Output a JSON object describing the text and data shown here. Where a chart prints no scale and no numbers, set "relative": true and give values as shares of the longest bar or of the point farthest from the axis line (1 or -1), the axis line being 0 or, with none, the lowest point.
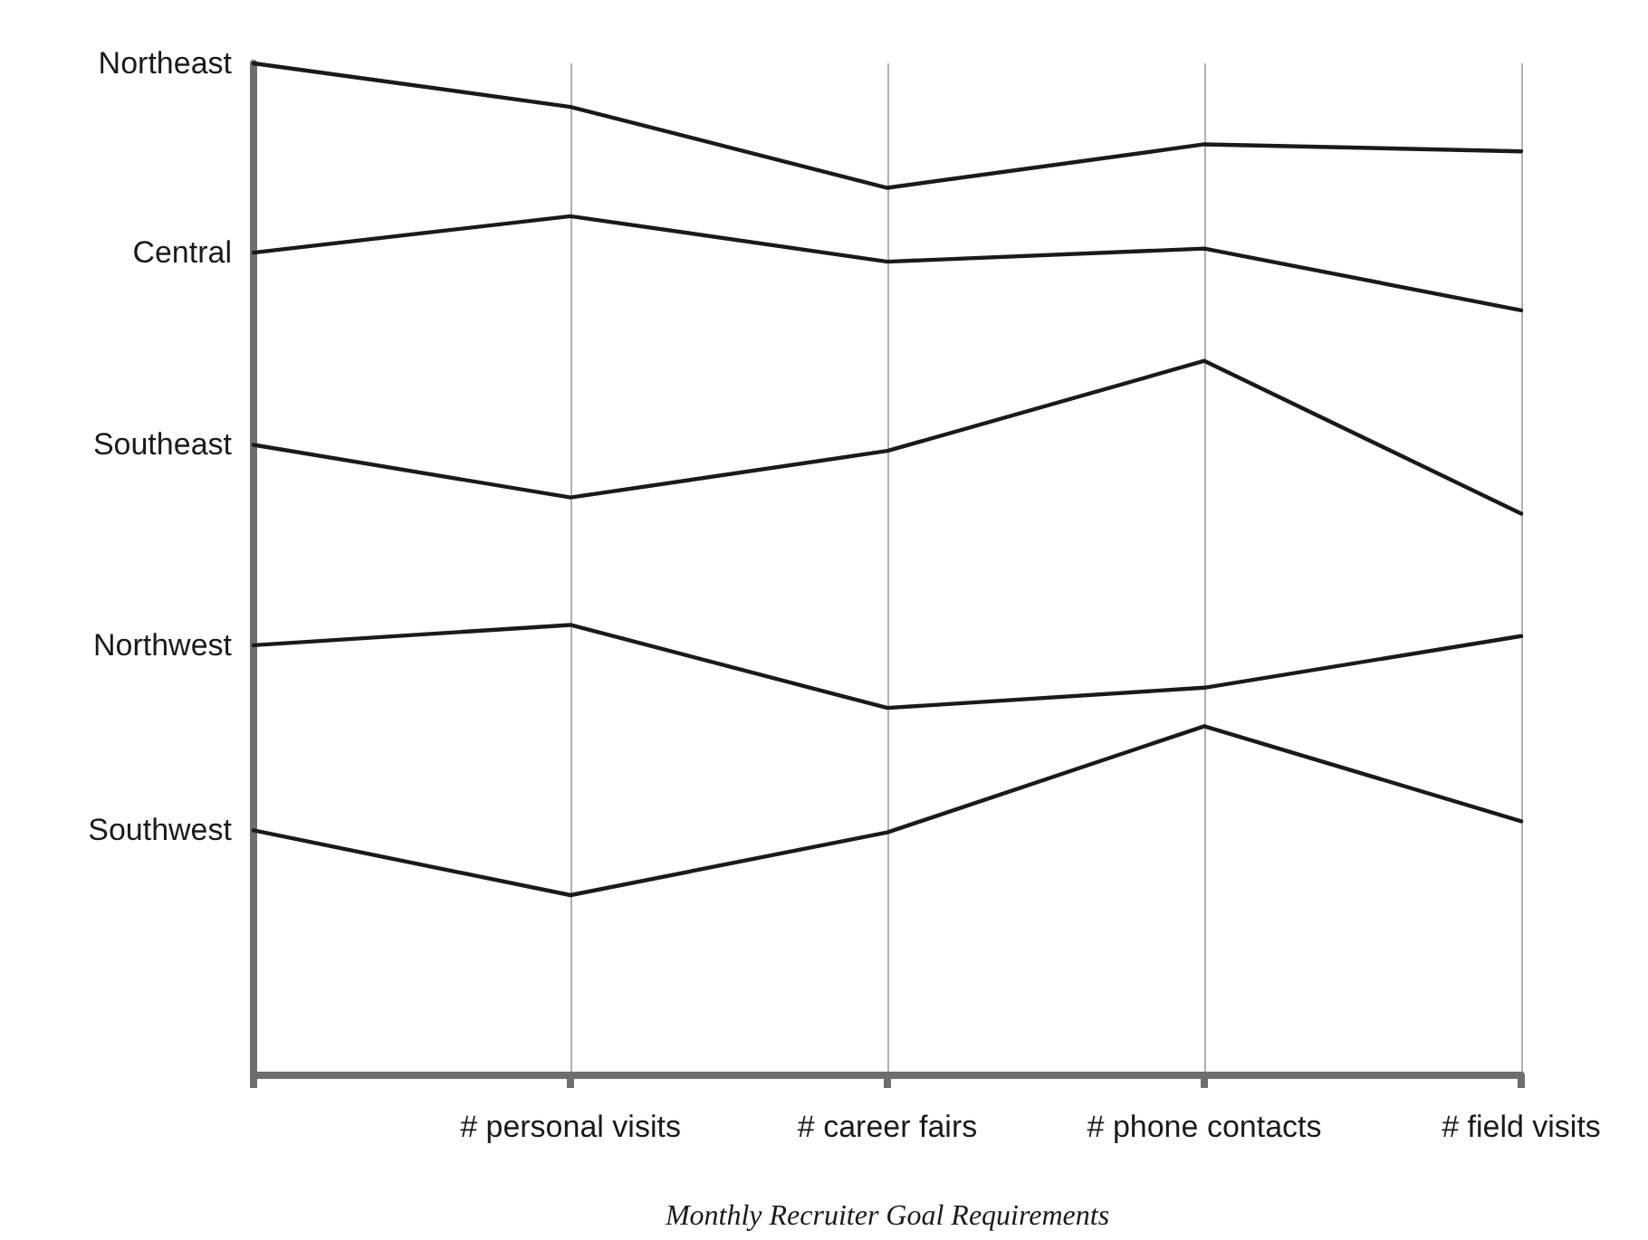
{
  "chart_data": {
    "type": "line",
    "relative": true,
    "xlabel": "Monthly Recruiter Goal Requirements",
    "categories": [
      null,
      "# personal visits",
      "# career fairs",
      "# phone contacts",
      "# field visits"
    ],
    "grid": "x",
    "legend": false,
    "series": [
      {
        "name": "Northeast",
        "color": "#1a1a1a",
        "values": [
          1,
          0.957,
          0.877,
          0.92,
          0.913
        ]
      },
      {
        "name": "Central",
        "color": "#1a1a1a",
        "values": [
          0.813,
          0.849,
          0.804,
          0.817,
          0.756
        ]
      },
      {
        "name": "Southeast",
        "color": "#1a1a1a",
        "values": [
          0.623,
          0.571,
          0.617,
          0.706,
          0.555
        ]
      },
      {
        "name": "Northwest",
        "color": "#1a1a1a",
        "values": [
          0.425,
          0.445,
          0.363,
          0.383,
          0.434
        ]
      },
      {
        "name": "Southwest",
        "color": "#1a1a1a",
        "values": [
          0.242,
          0.178,
          0.24,
          0.345,
          0.251
        ]
      }
    ]
  }
}
